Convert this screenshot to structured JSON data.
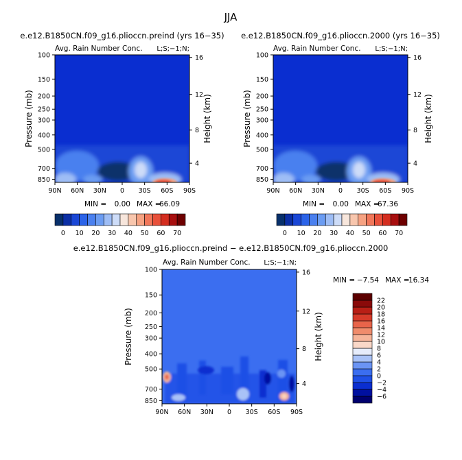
{
  "page_title": "JJA",
  "colors": {
    "bar_scale": [
      "#08306b",
      "#0b2fa5",
      "#1a47d6",
      "#2b63e8",
      "#4a80ef",
      "#6b9cf2",
      "#9ebdf5",
      "#cddcf8",
      "#f7e6dc",
      "#f8c6ad",
      "#f6a282",
      "#f1775a",
      "#e8503a",
      "#d42d1f",
      "#a80f0f",
      "#6e0000"
    ],
    "diff_scale": [
      "#00006e",
      "#0010a0",
      "#0a2ed0",
      "#1f50e6",
      "#3b6ef0",
      "#6b94f4",
      "#a9c2f7",
      "#e6ecfb",
      "#fad8c8",
      "#f6b59a",
      "#f08c6c",
      "#e8644a",
      "#d63b2a",
      "#b81f16",
      "#8a0a0a",
      "#5c0000"
    ]
  },
  "chart_data": [
    {
      "type": "heatmap",
      "title": "e.e12.B1850CN.f09_g16.plioccn.preind (yrs 16−35)",
      "subtitle": "Avg. Rain Number Conc.",
      "corner_label": "L;S;−1;N;",
      "xlabel": "",
      "ylabel": "Pressure (mb)",
      "right_ylabel": "Height (km)",
      "xticks": [
        "90N",
        "60N",
        "30N",
        "0",
        "30S",
        "60S",
        "90S"
      ],
      "yticks": [
        "100",
        "150",
        "200",
        "250",
        "300",
        "400",
        "500",
        "700",
        "850"
      ],
      "right_yticks": [
        "16",
        "12",
        "8",
        "4"
      ],
      "min_label": "MIN =",
      "min": "0.00",
      "max_label": "MAX =",
      "max": "66.09",
      "colorbar": {
        "orientation": "horizontal",
        "labels": [
          "0",
          "10",
          "20",
          "30",
          "40",
          "50",
          "60",
          "70"
        ]
      }
    },
    {
      "type": "heatmap",
      "title": "e.e12.B1850CN.f09_g16.plioccn.2000 (yrs 16−35)",
      "subtitle": "Avg. Rain Number Conc.",
      "corner_label": "L;S;−1;N;",
      "xlabel": "",
      "ylabel": "Pressure (mb)",
      "right_ylabel": "Height (km)",
      "xticks": [
        "90N",
        "60N",
        "30N",
        "0",
        "30S",
        "60S",
        "90S"
      ],
      "yticks": [
        "100",
        "150",
        "200",
        "250",
        "300",
        "400",
        "500",
        "700",
        "850"
      ],
      "right_yticks": [
        "16",
        "12",
        "8",
        "4"
      ],
      "min_label": "MIN =",
      "min": "0.00",
      "max_label": "MAX =",
      "max": "67.36",
      "colorbar": {
        "orientation": "horizontal",
        "labels": [
          "0",
          "10",
          "20",
          "30",
          "40",
          "50",
          "60",
          "70"
        ]
      }
    },
    {
      "type": "heatmap",
      "title": "e.e12.B1850CN.f09_g16.plioccn.preind − e.e12.B1850CN.f09_g16.plioccn.2000",
      "subtitle": "Avg. Rain Number Conc.",
      "corner_label": "L;S;−1;N;",
      "xlabel": "",
      "ylabel": "Pressure (mb)",
      "right_ylabel": "Height (km)",
      "xticks": [
        "90N",
        "60N",
        "30N",
        "0",
        "30S",
        "60S",
        "90S"
      ],
      "yticks": [
        "100",
        "150",
        "200",
        "250",
        "300",
        "400",
        "500",
        "700",
        "850"
      ],
      "right_yticks": [
        "16",
        "12",
        "8",
        "4"
      ],
      "min_label": "MIN =",
      "min": "−7.54",
      "max_label": "MAX =",
      "max": "16.34",
      "colorbar": {
        "orientation": "vertical",
        "labels": [
          "22",
          "20",
          "18",
          "16",
          "14",
          "12",
          "10",
          "8",
          "6",
          "4",
          "2",
          "0",
          "−2",
          "−4",
          "−6"
        ]
      }
    }
  ]
}
